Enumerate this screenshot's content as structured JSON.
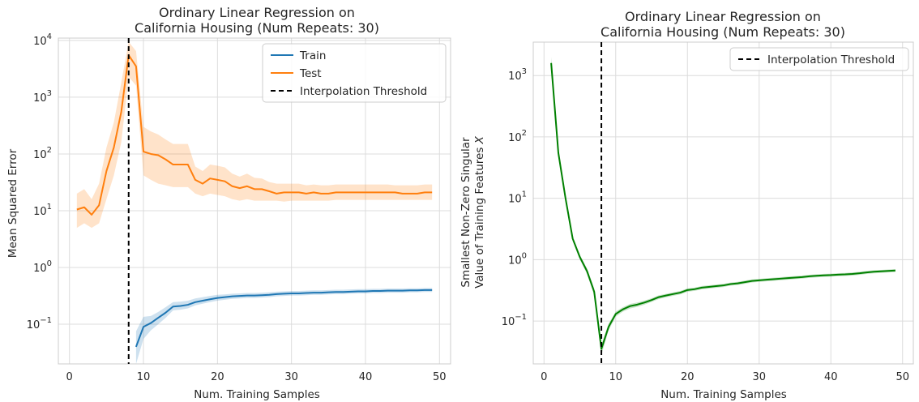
{
  "colors": {
    "train": "#1f77b4",
    "test": "#ff7f0e",
    "singular": "#008000",
    "threshold": "#000000",
    "grid": "#dcdcdc",
    "spine": "#cccccc"
  },
  "chart_data": [
    {
      "type": "line",
      "title": "Ordinary Linear Regression on\nCalifornia Housing (Num Repeats: 30)",
      "xlabel": "Num. Training Samples",
      "ylabel": "Mean Squared Error",
      "yscale": "log",
      "xlim": [
        -1.5,
        51.5
      ],
      "ylim": [
        0.02,
        11000
      ],
      "xticks": [
        0,
        10,
        20,
        30,
        40,
        50
      ],
      "yticks": [
        0.1,
        1,
        10,
        100,
        1000,
        10000
      ],
      "ytick_labels": [
        {
          "base": "10",
          "exp": "−1"
        },
        {
          "base": "10",
          "exp": "0"
        },
        {
          "base": "10",
          "exp": "1"
        },
        {
          "base": "10",
          "exp": "2"
        },
        {
          "base": "10",
          "exp": "3"
        },
        {
          "base": "10",
          "exp": "4"
        }
      ],
      "grid": true,
      "legend_position": "top-right",
      "threshold_x": 8,
      "series": [
        {
          "name": "Train",
          "color_key": "train",
          "x": [
            9,
            10,
            11,
            12,
            13,
            14,
            15,
            16,
            17,
            18,
            19,
            20,
            21,
            22,
            23,
            24,
            25,
            26,
            27,
            28,
            29,
            30,
            31,
            32,
            33,
            34,
            35,
            36,
            37,
            38,
            39,
            40,
            41,
            42,
            43,
            44,
            45,
            46,
            47,
            48,
            49
          ],
          "y": [
            0.04,
            0.09,
            0.105,
            0.13,
            0.16,
            0.205,
            0.21,
            0.22,
            0.245,
            0.26,
            0.275,
            0.29,
            0.3,
            0.31,
            0.315,
            0.32,
            0.32,
            0.325,
            0.33,
            0.34,
            0.345,
            0.35,
            0.35,
            0.355,
            0.36,
            0.36,
            0.365,
            0.37,
            0.37,
            0.375,
            0.38,
            0.38,
            0.385,
            0.385,
            0.39,
            0.39,
            0.39,
            0.395,
            0.395,
            0.4,
            0.4
          ],
          "lower": [
            0.02,
            0.055,
            0.078,
            0.1,
            0.13,
            0.175,
            0.18,
            0.19,
            0.215,
            0.23,
            0.245,
            0.26,
            0.27,
            0.28,
            0.285,
            0.29,
            0.29,
            0.295,
            0.3,
            0.31,
            0.315,
            0.32,
            0.32,
            0.325,
            0.33,
            0.33,
            0.335,
            0.34,
            0.34,
            0.345,
            0.35,
            0.35,
            0.355,
            0.355,
            0.36,
            0.36,
            0.36,
            0.365,
            0.365,
            0.37,
            0.37
          ],
          "upper": [
            0.075,
            0.135,
            0.14,
            0.165,
            0.2,
            0.245,
            0.25,
            0.26,
            0.285,
            0.3,
            0.315,
            0.33,
            0.335,
            0.345,
            0.35,
            0.355,
            0.355,
            0.36,
            0.365,
            0.375,
            0.38,
            0.385,
            0.385,
            0.39,
            0.395,
            0.395,
            0.4,
            0.405,
            0.405,
            0.41,
            0.415,
            0.415,
            0.42,
            0.42,
            0.425,
            0.425,
            0.425,
            0.43,
            0.43,
            0.435,
            0.435
          ]
        },
        {
          "name": "Test",
          "color_key": "test",
          "x": [
            1,
            2,
            3,
            4,
            5,
            6,
            7,
            8,
            9,
            10,
            11,
            12,
            13,
            14,
            15,
            16,
            17,
            18,
            19,
            20,
            21,
            22,
            23,
            24,
            25,
            26,
            27,
            28,
            29,
            30,
            31,
            32,
            33,
            34,
            35,
            36,
            37,
            38,
            39,
            40,
            41,
            42,
            43,
            44,
            45,
            46,
            47,
            48,
            49
          ],
          "y": [
            10.5,
            11.5,
            8.5,
            12.5,
            50,
            130,
            550,
            5500,
            3500,
            110,
            100,
            95,
            80,
            65,
            65,
            65,
            35,
            30,
            37,
            35,
            33,
            27,
            25,
            27,
            24,
            24,
            22,
            20,
            21,
            21,
            21,
            20,
            21,
            20,
            20,
            21,
            21,
            21,
            21,
            21,
            21,
            21,
            21,
            21,
            20,
            20,
            20,
            21,
            21
          ],
          "lower": [
            5,
            6,
            5,
            6,
            16,
            42,
            160,
            2300,
            1600,
            42,
            35,
            30,
            28,
            26,
            26,
            26,
            20,
            18,
            20,
            19,
            18,
            16,
            15,
            16,
            15,
            15,
            15,
            15,
            14.5,
            15,
            15,
            15,
            15,
            15,
            15,
            15.5,
            15.5,
            15.5,
            15.5,
            15.5,
            15.5,
            15.5,
            15.5,
            15.5,
            15.5,
            15.5,
            15.5,
            15.5,
            15.5
          ],
          "upper": [
            20,
            24,
            16,
            30,
            130,
            360,
            1800,
            9500,
            6500,
            300,
            250,
            220,
            180,
            150,
            150,
            150,
            60,
            50,
            65,
            62,
            58,
            45,
            40,
            45,
            38,
            37,
            32,
            30,
            30,
            30,
            30,
            28,
            29,
            28,
            28,
            29,
            29,
            29,
            29,
            29,
            29,
            29,
            29,
            28,
            28,
            28,
            28,
            29,
            29
          ]
        }
      ],
      "legend_entries": [
        "Train",
        "Test",
        "Interpolation Threshold"
      ]
    },
    {
      "type": "line",
      "title": "Ordinary Linear Regression on\nCalifornia Housing (Num Repeats: 30)",
      "xlabel": "Num. Training Samples",
      "ylabel": "Smallest Non-Zero Singular\nValue of Training Features X",
      "yscale": "log",
      "xlim": [
        -1.5,
        51.5
      ],
      "ylim": [
        0.02,
        3500
      ],
      "xticks": [
        0,
        10,
        20,
        30,
        40,
        50
      ],
      "yticks": [
        0.1,
        1,
        10,
        100,
        1000
      ],
      "ytick_labels": [
        {
          "base": "10",
          "exp": "−1"
        },
        {
          "base": "10",
          "exp": "0"
        },
        {
          "base": "10",
          "exp": "1"
        },
        {
          "base": "10",
          "exp": "2"
        },
        {
          "base": "10",
          "exp": "3"
        }
      ],
      "grid": true,
      "legend_position": "top-right",
      "threshold_x": 8,
      "series": [
        {
          "name": "",
          "color_key": "singular",
          "x": [
            1,
            2,
            3,
            4,
            5,
            6,
            7,
            8,
            9,
            10,
            11,
            12,
            13,
            14,
            15,
            16,
            17,
            18,
            19,
            20,
            21,
            22,
            23,
            24,
            25,
            26,
            27,
            28,
            29,
            30,
            31,
            32,
            33,
            34,
            35,
            36,
            37,
            38,
            39,
            40,
            41,
            42,
            43,
            44,
            45,
            46,
            47,
            48,
            49
          ],
          "y": [
            1600,
            55,
            10,
            2.2,
            1.1,
            0.65,
            0.3,
            0.035,
            0.08,
            0.13,
            0.155,
            0.175,
            0.185,
            0.2,
            0.22,
            0.245,
            0.26,
            0.275,
            0.29,
            0.32,
            0.33,
            0.35,
            0.36,
            0.37,
            0.38,
            0.4,
            0.41,
            0.43,
            0.45,
            0.46,
            0.47,
            0.48,
            0.49,
            0.5,
            0.51,
            0.52,
            0.535,
            0.545,
            0.555,
            0.56,
            0.57,
            0.575,
            0.585,
            0.6,
            0.62,
            0.635,
            0.645,
            0.655,
            0.665
          ],
          "lower": [
            1300,
            48,
            9,
            2.0,
            1.0,
            0.58,
            0.26,
            0.028,
            0.07,
            0.118,
            0.142,
            0.16,
            0.17,
            0.185,
            0.205,
            0.228,
            0.243,
            0.257,
            0.271,
            0.3,
            0.31,
            0.328,
            0.338,
            0.348,
            0.357,
            0.377,
            0.386,
            0.405,
            0.424,
            0.434,
            0.443,
            0.452,
            0.462,
            0.471,
            0.481,
            0.49,
            0.504,
            0.514,
            0.523,
            0.528,
            0.537,
            0.542,
            0.551,
            0.566,
            0.585,
            0.599,
            0.608,
            0.618,
            0.627
          ],
          "upper": [
            2000,
            63,
            11,
            2.4,
            1.2,
            0.72,
            0.34,
            0.042,
            0.09,
            0.142,
            0.168,
            0.19,
            0.2,
            0.215,
            0.235,
            0.262,
            0.277,
            0.293,
            0.309,
            0.34,
            0.35,
            0.372,
            0.382,
            0.392,
            0.403,
            0.423,
            0.434,
            0.455,
            0.476,
            0.486,
            0.497,
            0.508,
            0.518,
            0.529,
            0.539,
            0.55,
            0.566,
            0.576,
            0.587,
            0.592,
            0.603,
            0.608,
            0.619,
            0.634,
            0.655,
            0.671,
            0.682,
            0.692,
            0.703
          ]
        }
      ],
      "legend_entries": [
        "Interpolation Threshold"
      ]
    }
  ]
}
